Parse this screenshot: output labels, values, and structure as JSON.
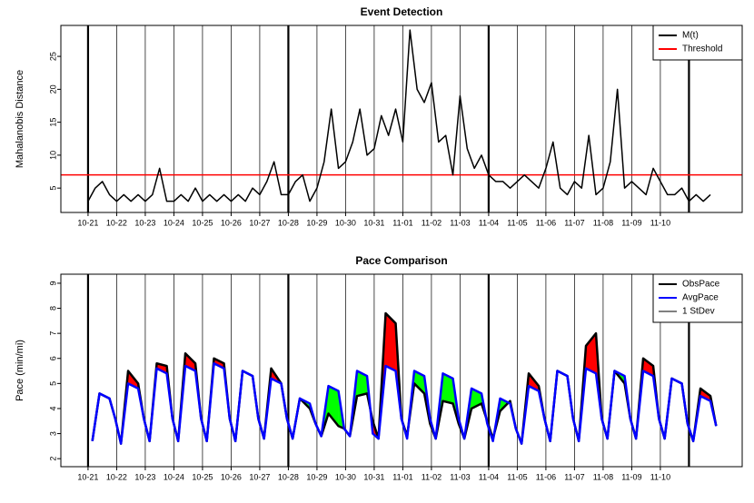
{
  "chart_data": [
    {
      "type": "line",
      "title": "Event Detection",
      "ylabel": "Mahalanobis Distance",
      "x": [
        0,
        0.25,
        0.5,
        0.75,
        1,
        1.25,
        1.5,
        1.75,
        2,
        2.25,
        2.5,
        2.75,
        3,
        3.25,
        3.5,
        3.75,
        4,
        4.25,
        4.5,
        4.75,
        5,
        5.25,
        5.5,
        5.75,
        6,
        6.25,
        6.5,
        6.75,
        7,
        7.25,
        7.5,
        7.75,
        8,
        8.25,
        8.5,
        8.75,
        9,
        9.25,
        9.5,
        9.75,
        10,
        10.25,
        10.5,
        10.75,
        11,
        11.25,
        11.5,
        11.75,
        12,
        12.25,
        12.5,
        12.75,
        13,
        13.25,
        13.5,
        13.75,
        14,
        14.25,
        14.5,
        14.75,
        15,
        15.25,
        15.5,
        15.75,
        16,
        16.25,
        16.5,
        16.75,
        17,
        17.25,
        17.5,
        17.75,
        18,
        18.25,
        18.5,
        18.75,
        19,
        19.25,
        19.5,
        19.75,
        20,
        20.25,
        20.5,
        20.75,
        21,
        21.25,
        21.5,
        21.75
      ],
      "series": [
        {
          "name": "M(t)",
          "color": "#000000",
          "values": [
            3,
            5,
            6,
            4,
            3,
            4,
            3,
            4,
            3,
            4,
            8,
            3,
            3,
            4,
            3,
            5,
            3,
            4,
            3,
            4,
            3,
            4,
            3,
            5,
            4,
            6,
            9,
            4,
            4,
            6,
            7,
            3,
            5,
            9,
            17,
            8,
            9,
            12,
            17,
            10,
            11,
            16,
            13,
            17,
            12,
            29,
            20,
            18,
            21,
            12,
            13,
            7,
            19,
            11,
            8,
            10,
            7,
            6,
            6,
            5,
            6,
            7,
            6,
            5,
            8,
            12,
            5,
            4,
            6,
            5,
            13,
            4,
            5,
            9,
            20,
            5,
            6,
            5,
            4,
            8,
            6,
            4,
            4,
            5,
            3,
            4,
            3,
            4
          ]
        }
      ],
      "threshold": {
        "name": "Threshold",
        "color": "#ff0000",
        "value": 7
      },
      "xlim": [
        -0.95,
        22.86
      ],
      "ylim": [
        1.3,
        29.7
      ],
      "yticks": [
        5,
        10,
        15,
        20,
        25
      ],
      "xticks": [
        {
          "value": 0,
          "label": "10-21"
        },
        {
          "value": 1,
          "label": "10-22"
        },
        {
          "value": 2,
          "label": "10-23"
        },
        {
          "value": 3,
          "label": "10-24"
        },
        {
          "value": 4,
          "label": "10-25"
        },
        {
          "value": 5,
          "label": "10-26"
        },
        {
          "value": 6,
          "label": "10-27"
        },
        {
          "value": 7,
          "label": "10-28"
        },
        {
          "value": 8,
          "label": "10-29"
        },
        {
          "value": 9,
          "label": "10-30"
        },
        {
          "value": 10,
          "label": "10-31"
        },
        {
          "value": 11,
          "label": "11-01"
        },
        {
          "value": 12,
          "label": "11-02"
        },
        {
          "value": 13,
          "label": "11-03"
        },
        {
          "value": 14,
          "label": "11-04"
        },
        {
          "value": 15,
          "label": "11-05"
        },
        {
          "value": 16,
          "label": "11-06"
        },
        {
          "value": 17,
          "label": "11-07"
        },
        {
          "value": 18,
          "label": "11-08"
        },
        {
          "value": 19,
          "label": "11-09"
        },
        {
          "value": 20,
          "label": "11-10"
        }
      ],
      "week_lines": [
        0,
        7,
        14,
        21
      ],
      "grid": true
    },
    {
      "type": "line",
      "title": "Pace Comparison",
      "ylabel": "Pace (min/mi)",
      "x": [
        0.15,
        0.4,
        0.75,
        0.95,
        1.15,
        1.4,
        1.75,
        1.95,
        2.15,
        2.4,
        2.75,
        2.95,
        3.15,
        3.4,
        3.75,
        3.95,
        4.15,
        4.4,
        4.75,
        4.95,
        5.15,
        5.4,
        5.75,
        5.95,
        6.15,
        6.4,
        6.75,
        6.95,
        7.15,
        7.4,
        7.75,
        7.95,
        8.15,
        8.4,
        8.75,
        8.95,
        9.15,
        9.4,
        9.75,
        9.95,
        10.15,
        10.4,
        10.75,
        10.95,
        11.15,
        11.4,
        11.75,
        11.95,
        12.15,
        12.4,
        12.75,
        12.95,
        13.15,
        13.4,
        13.75,
        13.95,
        14.15,
        14.4,
        14.75,
        14.95,
        15.15,
        15.4,
        15.75,
        15.95,
        16.15,
        16.4,
        16.75,
        16.95,
        17.15,
        17.4,
        17.75,
        17.95,
        18.15,
        18.4,
        18.75,
        18.95,
        19.15,
        19.4,
        19.75,
        19.95,
        20.15,
        20.4,
        20.75,
        20.95,
        21.15,
        21.4,
        21.75,
        21.95
      ],
      "series": [
        {
          "name": "ObsPace",
          "color": "#000000",
          "values": [
            2.7,
            4.6,
            4.4,
            3.6,
            2.6,
            5.5,
            5.0,
            3.6,
            2.7,
            5.8,
            5.7,
            3.6,
            2.7,
            6.2,
            5.8,
            3.6,
            2.7,
            6.0,
            5.8,
            3.6,
            2.7,
            5.5,
            5.3,
            3.6,
            2.8,
            5.6,
            5.0,
            3.6,
            2.8,
            4.4,
            4.0,
            3.4,
            2.9,
            3.8,
            3.3,
            3.2,
            2.9,
            4.5,
            4.6,
            3.5,
            2.8,
            7.8,
            7.4,
            3.6,
            2.9,
            5.0,
            4.6,
            3.4,
            2.8,
            4.3,
            4.2,
            3.4,
            2.8,
            4.0,
            4.2,
            3.5,
            2.8,
            3.9,
            4.3,
            3.2,
            2.6,
            5.4,
            4.9,
            3.6,
            2.7,
            5.5,
            5.3,
            3.6,
            2.7,
            6.5,
            7.0,
            3.6,
            2.8,
            5.5,
            5.0,
            3.6,
            2.8,
            6.0,
            5.7,
            3.6,
            2.8,
            5.2,
            5.0,
            3.4,
            2.7,
            4.8,
            4.5,
            3.3
          ]
        },
        {
          "name": "AvgPace",
          "color": "#0000ff",
          "values": [
            2.7,
            4.6,
            4.4,
            3.6,
            2.6,
            5.0,
            4.8,
            3.6,
            2.7,
            5.6,
            5.4,
            3.6,
            2.7,
            5.7,
            5.5,
            3.6,
            2.7,
            5.8,
            5.6,
            3.6,
            2.7,
            5.5,
            5.3,
            3.6,
            2.8,
            5.2,
            5.0,
            3.6,
            2.8,
            4.4,
            4.2,
            3.4,
            2.9,
            4.9,
            4.7,
            3.2,
            2.9,
            5.5,
            5.3,
            3.0,
            2.8,
            5.7,
            5.5,
            3.6,
            2.8,
            5.5,
            5.3,
            3.6,
            2.8,
            5.4,
            5.2,
            3.6,
            2.8,
            4.8,
            4.6,
            3.4,
            2.7,
            4.4,
            4.2,
            3.2,
            2.6,
            4.9,
            4.7,
            3.6,
            2.7,
            5.5,
            5.3,
            3.6,
            2.7,
            5.6,
            5.4,
            3.6,
            2.8,
            5.5,
            5.3,
            3.6,
            2.8,
            5.5,
            5.3,
            3.6,
            2.8,
            5.2,
            5.0,
            3.4,
            2.7,
            4.5,
            4.3,
            3.3
          ]
        }
      ],
      "legend_extra": {
        "name": "1 StDev",
        "color": "#808080"
      },
      "fill_colors": {
        "above": "#ff0000",
        "below": "#00ff00"
      },
      "xlim": [
        -0.95,
        22.86
      ],
      "ylim": [
        1.68,
        9.36
      ],
      "yticks": [
        2,
        3,
        4,
        5,
        6,
        7,
        8,
        9
      ],
      "xticks": [
        {
          "value": 0,
          "label": "10-21"
        },
        {
          "value": 1,
          "label": "10-22"
        },
        {
          "value": 2,
          "label": "10-23"
        },
        {
          "value": 3,
          "label": "10-24"
        },
        {
          "value": 4,
          "label": "10-25"
        },
        {
          "value": 5,
          "label": "10-26"
        },
        {
          "value": 6,
          "label": "10-27"
        },
        {
          "value": 7,
          "label": "10-28"
        },
        {
          "value": 8,
          "label": "10-29"
        },
        {
          "value": 9,
          "label": "10-30"
        },
        {
          "value": 10,
          "label": "10-31"
        },
        {
          "value": 11,
          "label": "11-01"
        },
        {
          "value": 12,
          "label": "11-02"
        },
        {
          "value": 13,
          "label": "11-03"
        },
        {
          "value": 14,
          "label": "11-04"
        },
        {
          "value": 15,
          "label": "11-05"
        },
        {
          "value": 16,
          "label": "11-06"
        },
        {
          "value": 17,
          "label": "11-07"
        },
        {
          "value": 18,
          "label": "11-08"
        },
        {
          "value": 19,
          "label": "11-09"
        },
        {
          "value": 20,
          "label": "11-10"
        }
      ],
      "week_lines": [
        0,
        7,
        14,
        21
      ],
      "grid": true
    }
  ]
}
